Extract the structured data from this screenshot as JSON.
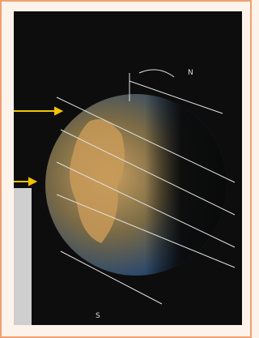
{
  "labels": {
    "north": "N",
    "south": "S"
  }
}
